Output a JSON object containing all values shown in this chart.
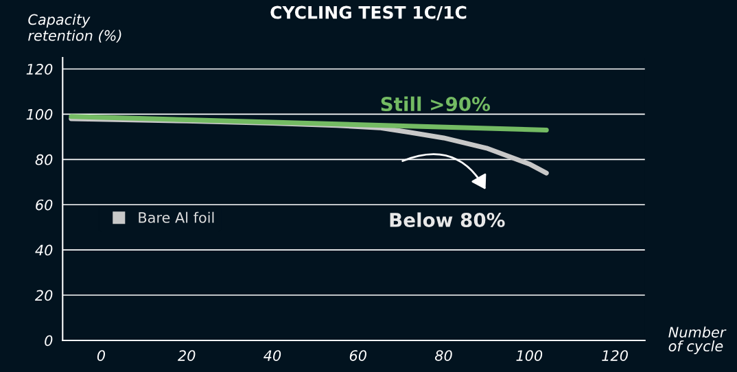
{
  "chart_data": {
    "type": "line",
    "title": "CYCLING TEST 1C/1C",
    "xlabel": "Number\nof cycle",
    "ylabel": "Capacity\nretention (%)",
    "series": [
      {
        "name": "Bare Al foil",
        "color": "#c8c8c8",
        "x": [
          -7,
          20,
          40,
          55,
          65,
          72,
          80,
          90,
          100,
          104
        ],
        "values": [
          98,
          97,
          96,
          95,
          94,
          92,
          89.5,
          85,
          78,
          74
        ]
      },
      {
        "color": "#74bb63",
        "x": [
          -7,
          104
        ],
        "values": [
          99,
          93
        ]
      }
    ],
    "annotations": [
      "Still >90%",
      "Below 80%"
    ],
    "xlim": [
      -9,
      127
    ],
    "ylim": [
      0,
      125
    ],
    "xticks": [
      0,
      20,
      40,
      60,
      80,
      100,
      120
    ],
    "yticks": [
      0,
      20,
      40,
      60,
      80,
      100,
      120
    ],
    "grid": "y",
    "legend": "center left"
  }
}
